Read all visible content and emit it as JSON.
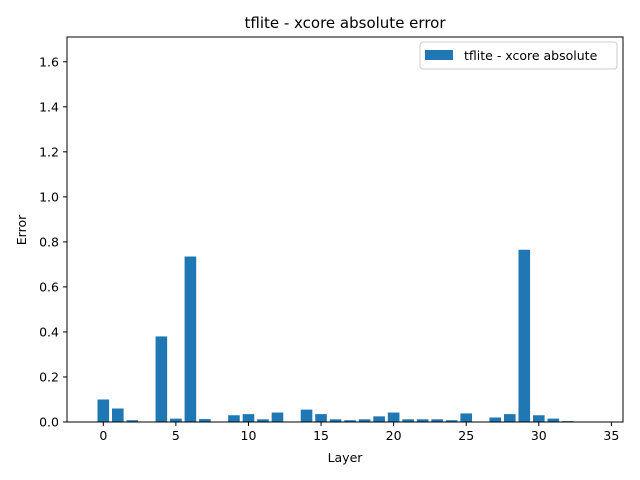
{
  "chart_data": {
    "type": "bar",
    "title": "tflite - xcore absolute error",
    "xlabel": "Layer",
    "ylabel": "Error",
    "xlim": [
      -2.5,
      35.8
    ],
    "ylim": [
      0,
      1.71
    ],
    "xticks": [
      0,
      5,
      10,
      15,
      20,
      25,
      30,
      35
    ],
    "yticks": [
      0.0,
      0.2,
      0.4,
      0.6,
      0.8,
      1.0,
      1.2,
      1.4,
      1.6
    ],
    "xtick_labels": [
      "0",
      "5",
      "10",
      "15",
      "20",
      "25",
      "30",
      "35"
    ],
    "ytick_labels": [
      "0.0",
      "0.2",
      "0.4",
      "0.6",
      "0.8",
      "1.0",
      "1.2",
      "1.4",
      "1.6"
    ],
    "grid": false,
    "legend_position": "top-right",
    "color": "#1f77b4",
    "series": [
      {
        "name": "tflite - xcore absolute",
        "x": [
          0,
          1,
          2,
          3,
          4,
          5,
          6,
          7,
          8,
          9,
          10,
          11,
          12,
          13,
          14,
          15,
          16,
          17,
          18,
          19,
          20,
          21,
          22,
          23,
          24,
          25,
          26,
          27,
          28,
          29,
          30,
          31,
          32,
          33,
          34,
          35
        ],
        "values": [
          0.1,
          0.06,
          0.008,
          0,
          0.38,
          0.015,
          0.735,
          0.013,
          0,
          0.03,
          0.035,
          0.012,
          0.042,
          0,
          0.055,
          0.035,
          0.012,
          0.008,
          0.012,
          0.025,
          0.042,
          0.012,
          0.012,
          0.012,
          0.008,
          0.038,
          0,
          0.02,
          0.035,
          0.765,
          0.03,
          0.015,
          0.004,
          0,
          0,
          0
        ]
      }
    ]
  }
}
